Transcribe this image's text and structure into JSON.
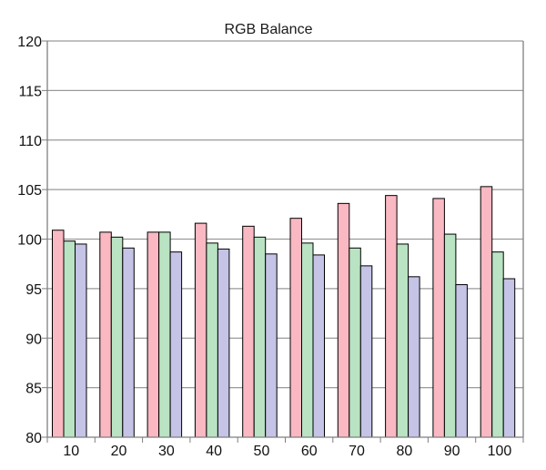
{
  "chart_data": {
    "type": "bar",
    "title": "RGB Balance",
    "xlabel": "",
    "ylabel": "",
    "categories": [
      "10",
      "20",
      "30",
      "40",
      "50",
      "60",
      "70",
      "80",
      "90",
      "100"
    ],
    "ylim": [
      80,
      120
    ],
    "yticks": [
      80,
      85,
      90,
      95,
      100,
      105,
      110,
      115,
      120
    ],
    "grid": true,
    "legend": "none",
    "series": [
      {
        "color": "#f9b8c2",
        "values": [
          100.9,
          100.7,
          100.7,
          101.6,
          101.3,
          102.1,
          103.6,
          104.4,
          104.1,
          105.3
        ]
      },
      {
        "color": "#b9e3c2",
        "values": [
          99.8,
          100.2,
          100.7,
          99.6,
          100.2,
          99.6,
          99.1,
          99.5,
          100.5,
          98.7
        ]
      },
      {
        "color": "#c5c3e6",
        "values": [
          99.5,
          99.1,
          98.7,
          99.0,
          98.5,
          98.4,
          97.3,
          96.2,
          95.4,
          96.0
        ]
      }
    ]
  },
  "colors": {
    "gridline": "#9a9a9a",
    "axis": "#7f7f7f",
    "bar_outline": "#000000",
    "background": "#ffffff"
  }
}
